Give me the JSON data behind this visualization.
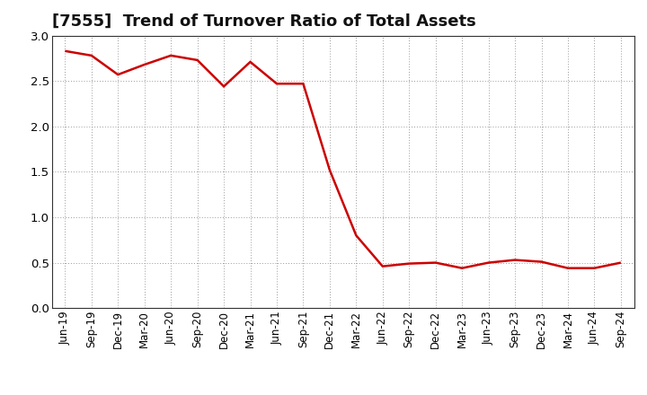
{
  "title": "[7555]  Trend of Turnover Ratio of Total Assets",
  "x_labels": [
    "Jun-19",
    "Sep-19",
    "Dec-19",
    "Mar-20",
    "Jun-20",
    "Sep-20",
    "Dec-20",
    "Mar-21",
    "Jun-21",
    "Sep-21",
    "Dec-21",
    "Mar-22",
    "Jun-22",
    "Sep-22",
    "Dec-22",
    "Mar-23",
    "Jun-23",
    "Sep-23",
    "Dec-23",
    "Mar-24",
    "Jun-24",
    "Sep-24"
  ],
  "y_values": [
    2.83,
    2.78,
    2.57,
    2.68,
    2.78,
    2.73,
    2.44,
    2.71,
    2.47,
    2.47,
    1.52,
    0.8,
    0.46,
    0.49,
    0.5,
    0.44,
    0.5,
    0.53,
    0.51,
    0.44,
    0.44,
    0.5
  ],
  "line_color": "#cc0000",
  "line_width": 1.8,
  "ylim": [
    0.0,
    3.0
  ],
  "yticks": [
    0.0,
    0.5,
    1.0,
    1.5,
    2.0,
    2.5,
    3.0
  ],
  "grid_color": "#999999",
  "background_color": "#ffffff",
  "title_fontsize": 13,
  "tick_fontsize": 8.5
}
